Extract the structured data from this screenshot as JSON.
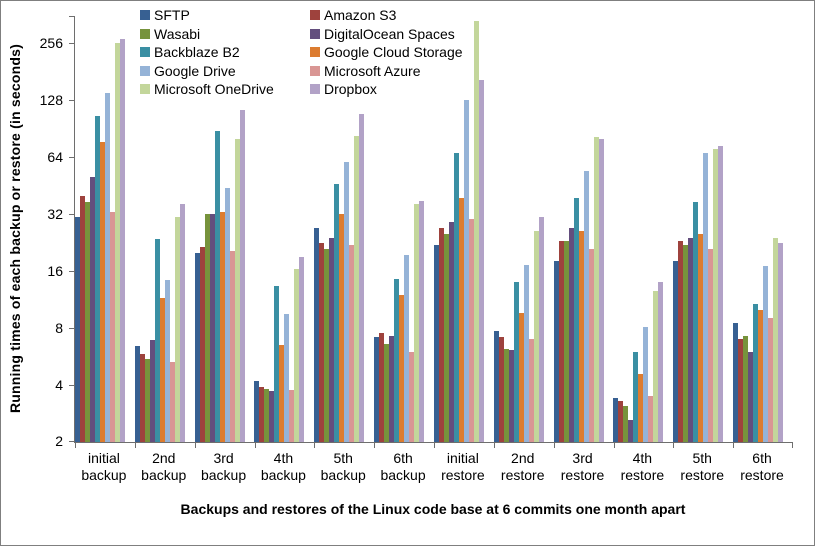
{
  "chart_data": {
    "type": "bar",
    "scale": "log2",
    "xlabel": "Backups and restores of the Linux code base at 6 commits one month apart",
    "ylabel": "Running times of each backup or restore (in seconds)",
    "y_ticks": [
      2,
      4,
      8,
      16,
      32,
      64,
      128,
      256
    ],
    "ylim": [
      2,
      350
    ],
    "grid": "off",
    "legend_position": "top",
    "legend_columns": 2,
    "categories": [
      "initial backup",
      "2nd backup",
      "3rd backup",
      "4th backup",
      "5th backup",
      "6th backup",
      "initial restore",
      "2nd restore",
      "3rd restore",
      "4th restore",
      "5th restore",
      "6th restore"
    ],
    "series": [
      {
        "name": "SFTP",
        "color": "#376092",
        "values": [
          31,
          6.4,
          20,
          4.2,
          27,
          7.2,
          22,
          7.7,
          18,
          3.4,
          18,
          8.5
        ]
      },
      {
        "name": "Amazon S3",
        "color": "#9E423D",
        "values": [
          40,
          5.8,
          21.5,
          3.9,
          22.5,
          7.5,
          27,
          7.2,
          23,
          3.3,
          23,
          7
        ]
      },
      {
        "name": "Wasabi",
        "color": "#77933C",
        "values": [
          37,
          5.5,
          32,
          3.8,
          21,
          6.6,
          25,
          6.2,
          23,
          3.1,
          22,
          7.3
        ]
      },
      {
        "name": "DigitalOcean Spaces",
        "color": "#634E7E",
        "values": [
          50,
          6.9,
          32,
          3.7,
          24,
          7.3,
          29,
          6.1,
          27,
          2.6,
          24,
          6
        ]
      },
      {
        "name": "Backblaze B2",
        "color": "#3A8FA3",
        "values": [
          105,
          23.5,
          88,
          13.4,
          46,
          14.5,
          67,
          14,
          39,
          6,
          37,
          10.7
        ]
      },
      {
        "name": "Google Cloud Storage",
        "color": "#DC7C30",
        "values": [
          77,
          11.5,
          33,
          6.5,
          32,
          12,
          39,
          9.6,
          26,
          4.6,
          25,
          10
        ]
      },
      {
        "name": "Google Drive",
        "color": "#95B3D7",
        "values": [
          140,
          14.3,
          44,
          9.5,
          60,
          19.5,
          128,
          17.3,
          54,
          8.1,
          67,
          17
        ]
      },
      {
        "name": "Microsoft Azure",
        "color": "#D99694",
        "values": [
          33,
          5.3,
          20.5,
          3.75,
          22,
          6,
          30,
          7,
          21,
          3.5,
          21,
          9
        ]
      },
      {
        "name": "Microsoft OneDrive",
        "color": "#C3D69B",
        "values": [
          257,
          31,
          80,
          16.5,
          83,
          36,
          334,
          26,
          82,
          12.5,
          71,
          24
        ]
      },
      {
        "name": "Dropbox",
        "color": "#B2A2C7",
        "values": [
          270,
          36,
          113,
          19,
          108,
          37.5,
          163,
          31,
          80,
          14,
          73,
          22.5
        ]
      }
    ]
  }
}
